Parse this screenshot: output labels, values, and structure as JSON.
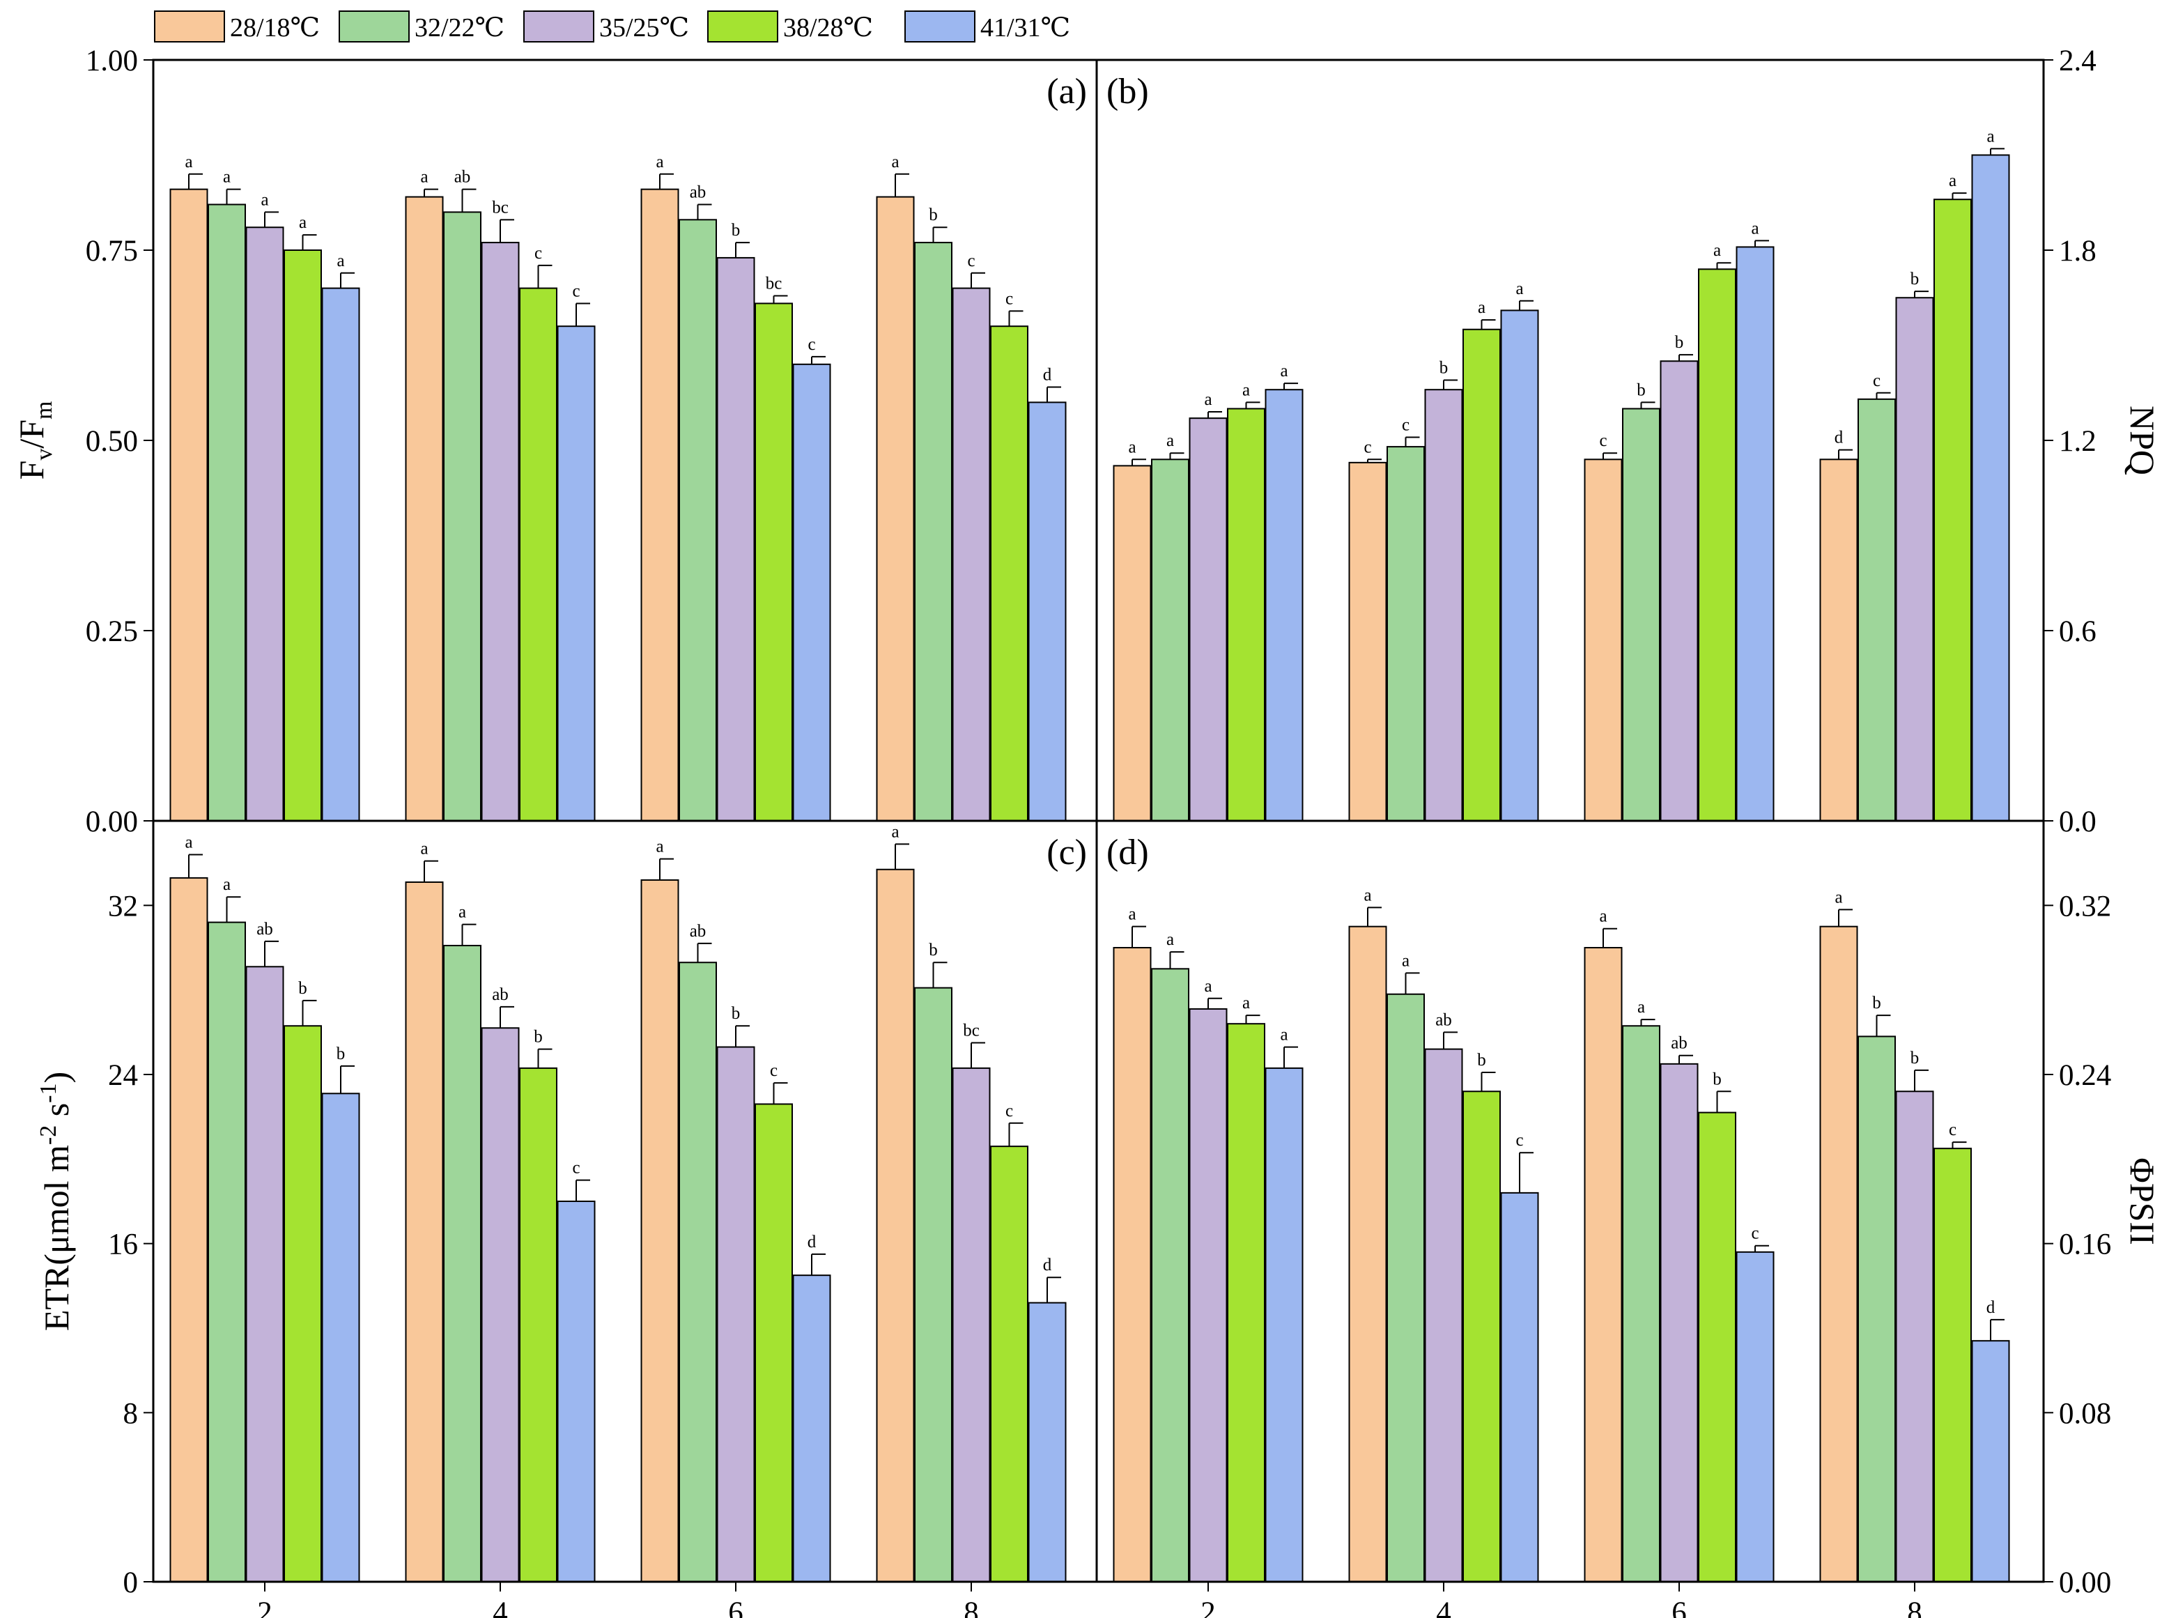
{
  "legend": [
    {
      "label": "28/18℃",
      "color": "#F9C89A"
    },
    {
      "label": "32/22℃",
      "color": "#9ED69A"
    },
    {
      "label": "35/25℃",
      "color": "#C3B3D9"
    },
    {
      "label": "38/28℃",
      "color": "#A4E331"
    },
    {
      "label": "41/31℃",
      "color": "#9CB7F0"
    }
  ],
  "chart_data": [
    {
      "id": "a",
      "type": "bar",
      "panel_label": "(a)",
      "ylabel": "Fv/Fm",
      "ylabel_main": "F",
      "ylabel_sub1": "v",
      "ylabel_mid": "/F",
      "ylabel_sub2": "m",
      "ylim": [
        0,
        1.0
      ],
      "yticks": [
        "0.00",
        "0.25",
        "0.50",
        "0.75",
        "1.00"
      ],
      "ytick_values": [
        0,
        0.25,
        0.5,
        0.75,
        1.0
      ],
      "categories": [
        "2",
        "4",
        "6",
        "8"
      ],
      "series": [
        {
          "name": "28/18℃",
          "values": [
            0.83,
            0.82,
            0.83,
            0.82
          ],
          "errors": [
            0.02,
            0.01,
            0.02,
            0.03
          ],
          "letters": [
            "a",
            "a",
            "a",
            "a"
          ]
        },
        {
          "name": "32/22℃",
          "values": [
            0.81,
            0.8,
            0.79,
            0.76
          ],
          "errors": [
            0.02,
            0.03,
            0.02,
            0.02
          ],
          "letters": [
            "a",
            "ab",
            "ab",
            "b"
          ]
        },
        {
          "name": "35/25℃",
          "values": [
            0.78,
            0.76,
            0.74,
            0.7
          ],
          "errors": [
            0.02,
            0.03,
            0.02,
            0.02
          ],
          "letters": [
            "a",
            "bc",
            "b",
            "c"
          ]
        },
        {
          "name": "38/28℃",
          "values": [
            0.75,
            0.7,
            0.68,
            0.65
          ],
          "errors": [
            0.02,
            0.03,
            0.01,
            0.02
          ],
          "letters": [
            "a",
            "c",
            "bc",
            "c"
          ]
        },
        {
          "name": "41/31℃",
          "values": [
            0.7,
            0.65,
            0.6,
            0.55
          ],
          "errors": [
            0.02,
            0.03,
            0.01,
            0.02
          ],
          "letters": [
            "a",
            "c",
            "c",
            "d"
          ]
        }
      ]
    },
    {
      "id": "b",
      "type": "bar",
      "panel_label": "(b)",
      "ylabel": "NPQ",
      "ylim": [
        0,
        2.4
      ],
      "yticks": [
        "0.0",
        "0.6",
        "1.2",
        "1.8",
        "2.4"
      ],
      "ytick_values": [
        0,
        0.6,
        1.2,
        1.8,
        2.4
      ],
      "categories": [
        "2",
        "4",
        "6",
        "8"
      ],
      "series": [
        {
          "name": "28/18℃",
          "values": [
            1.12,
            1.13,
            1.14,
            1.14
          ],
          "errors": [
            0.02,
            0.01,
            0.02,
            0.03
          ],
          "letters": [
            "a",
            "c",
            "c",
            "d"
          ]
        },
        {
          "name": "32/22℃",
          "values": [
            1.14,
            1.18,
            1.3,
            1.33
          ],
          "errors": [
            0.02,
            0.03,
            0.02,
            0.02
          ],
          "letters": [
            "a",
            "c",
            "b",
            "c"
          ]
        },
        {
          "name": "35/25℃",
          "values": [
            1.27,
            1.36,
            1.45,
            1.65
          ],
          "errors": [
            0.02,
            0.03,
            0.02,
            0.02
          ],
          "letters": [
            "a",
            "b",
            "b",
            "b"
          ]
        },
        {
          "name": "38/28℃",
          "values": [
            1.3,
            1.55,
            1.74,
            1.96
          ],
          "errors": [
            0.02,
            0.03,
            0.02,
            0.02
          ],
          "letters": [
            "a",
            "a",
            "a",
            "a"
          ]
        },
        {
          "name": "41/31℃",
          "values": [
            1.36,
            1.61,
            1.81,
            2.1
          ],
          "errors": [
            0.02,
            0.03,
            0.02,
            0.02
          ],
          "letters": [
            "a",
            "a",
            "a",
            "a"
          ]
        }
      ]
    },
    {
      "id": "c",
      "type": "bar",
      "panel_label": "(c)",
      "ylabel": "ETR(μmol m-2 s-1)",
      "ylabel_main": "ETR(μmol m",
      "ylabel_sup1": "-2",
      "ylabel_mid": " s",
      "ylabel_sup2": "-1",
      "ylabel_end": ")",
      "ylim": [
        0,
        36
      ],
      "yticks": [
        "0",
        "8",
        "16",
        "24",
        "32"
      ],
      "ytick_values": [
        0,
        8,
        16,
        24,
        32
      ],
      "categories": [
        "2",
        "4",
        "6",
        "8"
      ],
      "series": [
        {
          "name": "28/18℃",
          "values": [
            33.3,
            33.1,
            33.2,
            33.7
          ],
          "errors": [
            1.1,
            1.0,
            1.0,
            1.2
          ],
          "letters": [
            "a",
            "a",
            "a",
            "a"
          ]
        },
        {
          "name": "32/22℃",
          "values": [
            31.2,
            30.1,
            29.3,
            28.1
          ],
          "errors": [
            1.2,
            1.0,
            0.9,
            1.2
          ],
          "letters": [
            "a",
            "a",
            "ab",
            "b"
          ]
        },
        {
          "name": "35/25℃",
          "values": [
            29.1,
            26.2,
            25.3,
            24.3
          ],
          "errors": [
            1.2,
            1.0,
            1.0,
            1.2
          ],
          "letters": [
            "ab",
            "ab",
            "b",
            "bc"
          ]
        },
        {
          "name": "38/28℃",
          "values": [
            26.3,
            24.3,
            22.6,
            20.6
          ],
          "errors": [
            1.2,
            0.9,
            1.0,
            1.1
          ],
          "letters": [
            "b",
            "b",
            "c",
            "c"
          ]
        },
        {
          "name": "41/31℃",
          "values": [
            23.1,
            18.0,
            14.5,
            13.2
          ],
          "errors": [
            1.3,
            1.0,
            1.0,
            1.2
          ],
          "letters": [
            "b",
            "c",
            "d",
            "d"
          ]
        }
      ]
    },
    {
      "id": "d",
      "type": "bar",
      "panel_label": "(d)",
      "ylabel": "ΦPSII",
      "ylim": [
        0,
        0.36
      ],
      "yticks": [
        "0.00",
        "0.08",
        "0.16",
        "0.24",
        "0.32"
      ],
      "ytick_values": [
        0,
        0.08,
        0.16,
        0.24,
        0.32
      ],
      "categories": [
        "2",
        "4",
        "6",
        "8"
      ],
      "series": [
        {
          "name": "28/18℃",
          "values": [
            0.3,
            0.31,
            0.3,
            0.31
          ],
          "errors": [
            0.01,
            0.009,
            0.009,
            0.008
          ],
          "letters": [
            "a",
            "a",
            "a",
            "a"
          ]
        },
        {
          "name": "32/22℃",
          "values": [
            0.29,
            0.278,
            0.263,
            0.258
          ],
          "errors": [
            0.008,
            0.01,
            0.003,
            0.01
          ],
          "letters": [
            "a",
            "a",
            "a",
            "b"
          ]
        },
        {
          "name": "35/25℃",
          "values": [
            0.271,
            0.252,
            0.245,
            0.232
          ],
          "errors": [
            0.005,
            0.008,
            0.004,
            0.01
          ],
          "letters": [
            "a",
            "ab",
            "ab",
            "b"
          ]
        },
        {
          "name": "38/28℃",
          "values": [
            0.264,
            0.232,
            0.222,
            0.205
          ],
          "errors": [
            0.004,
            0.009,
            0.01,
            0.003
          ],
          "letters": [
            "a",
            "b",
            "b",
            "c"
          ]
        },
        {
          "name": "41/31℃",
          "values": [
            0.243,
            0.184,
            0.156,
            0.114
          ],
          "errors": [
            0.01,
            0.019,
            0.003,
            0.01
          ],
          "letters": [
            "a",
            "c",
            "c",
            "d"
          ]
        }
      ]
    }
  ]
}
